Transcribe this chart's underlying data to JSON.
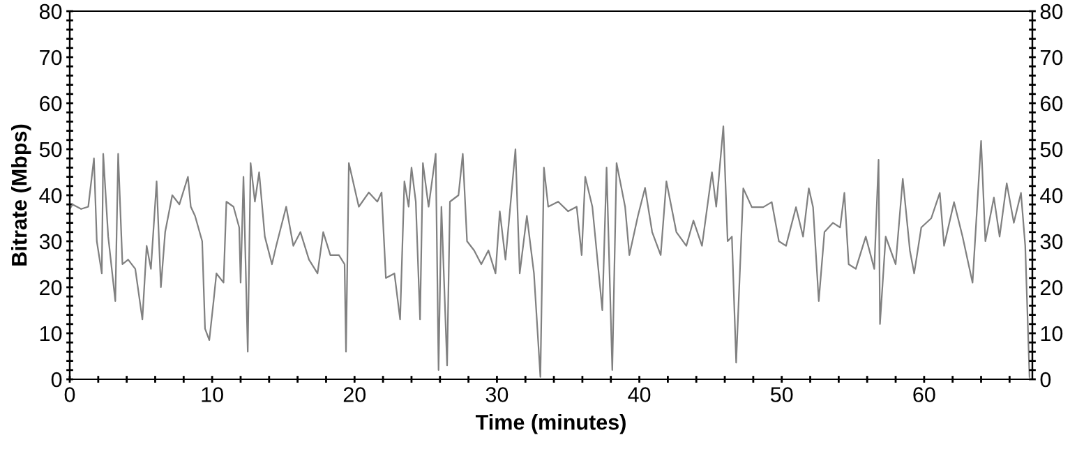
{
  "chart_data": {
    "type": "line",
    "xlabel": "Time (minutes)",
    "ylabel": "Bitrate (Mbps)",
    "xlim": [
      0,
      67.6
    ],
    "ylim": [
      0,
      80
    ],
    "xticks": [
      0,
      {
        "value": 2,
        "label": null
      },
      {
        "value": 4,
        "label": null
      },
      {
        "value": 6,
        "label": null
      },
      {
        "value": 8,
        "label": null
      },
      10,
      {
        "value": 12,
        "label": null
      },
      {
        "value": 14,
        "label": null
      },
      {
        "value": 16,
        "label": null
      },
      {
        "value": 18,
        "label": null
      },
      20,
      {
        "value": 22,
        "label": null
      },
      {
        "value": 24,
        "label": null
      },
      {
        "value": 26,
        "label": null
      },
      {
        "value": 28,
        "label": null
      },
      30,
      {
        "value": 32,
        "label": null
      },
      {
        "value": 34,
        "label": null
      },
      {
        "value": 36,
        "label": null
      },
      {
        "value": 38,
        "label": null
      },
      40,
      {
        "value": 42,
        "label": null
      },
      {
        "value": 44,
        "label": null
      },
      {
        "value": 46,
        "label": null
      },
      {
        "value": 48,
        "label": null
      },
      50,
      {
        "value": 52,
        "label": null
      },
      {
        "value": 54,
        "label": null
      },
      {
        "value": 56,
        "label": null
      },
      {
        "value": 58,
        "label": null
      },
      60,
      {
        "value": 62,
        "label": null
      },
      {
        "value": 64,
        "label": null
      },
      {
        "value": 66,
        "label": null
      }
    ],
    "yticks": [
      0,
      {
        "value": 2,
        "label": null
      },
      {
        "value": 4,
        "label": null
      },
      {
        "value": 6,
        "label": null
      },
      {
        "value": 8,
        "label": null
      },
      10,
      {
        "value": 12,
        "label": null
      },
      {
        "value": 14,
        "label": null
      },
      {
        "value": 16,
        "label": null
      },
      {
        "value": 18,
        "label": null
      },
      20,
      {
        "value": 22,
        "label": null
      },
      {
        "value": 24,
        "label": null
      },
      {
        "value": 26,
        "label": null
      },
      {
        "value": 28,
        "label": null
      },
      30,
      {
        "value": 32,
        "label": null
      },
      {
        "value": 34,
        "label": null
      },
      {
        "value": 36,
        "label": null
      },
      {
        "value": 38,
        "label": null
      },
      40,
      {
        "value": 42,
        "label": null
      },
      {
        "value": 44,
        "label": null
      },
      {
        "value": 46,
        "label": null
      },
      {
        "value": 48,
        "label": null
      },
      50,
      {
        "value": 52,
        "label": null
      },
      {
        "value": 54,
        "label": null
      },
      {
        "value": 56,
        "label": null
      },
      {
        "value": 58,
        "label": null
      },
      60,
      {
        "value": 62,
        "label": null
      },
      {
        "value": 64,
        "label": null
      },
      {
        "value": 66,
        "label": null
      },
      {
        "value": 68,
        "label": null
      },
      70,
      {
        "value": 72,
        "label": null
      },
      {
        "value": 74,
        "label": null
      },
      {
        "value": 76,
        "label": null
      },
      {
        "value": 78,
        "label": null
      },
      80
    ],
    "y2lim": [
      0,
      80
    ],
    "y2ticks": [
      0,
      {
        "value": 2,
        "label": null
      },
      {
        "value": 4,
        "label": null
      },
      {
        "value": 6,
        "label": null
      },
      {
        "value": 8,
        "label": null
      },
      10,
      {
        "value": 12,
        "label": null
      },
      {
        "value": 14,
        "label": null
      },
      {
        "value": 16,
        "label": null
      },
      {
        "value": 18,
        "label": null
      },
      20,
      {
        "value": 22,
        "label": null
      },
      {
        "value": 24,
        "label": null
      },
      {
        "value": 26,
        "label": null
      },
      {
        "value": 28,
        "label": null
      },
      30,
      {
        "value": 32,
        "label": null
      },
      {
        "value": 34,
        "label": null
      },
      {
        "value": 36,
        "label": null
      },
      {
        "value": 38,
        "label": null
      },
      40,
      {
        "value": 42,
        "label": null
      },
      {
        "value": 44,
        "label": null
      },
      {
        "value": 46,
        "label": null
      },
      {
        "value": 48,
        "label": null
      },
      50,
      {
        "value": 52,
        "label": null
      },
      {
        "value": 54,
        "label": null
      },
      {
        "value": 56,
        "label": null
      },
      {
        "value": 58,
        "label": null
      },
      60,
      {
        "value": 62,
        "label": null
      },
      {
        "value": 64,
        "label": null
      },
      {
        "value": 66,
        "label": null
      },
      {
        "value": 68,
        "label": null
      },
      70,
      {
        "value": 72,
        "label": null
      },
      {
        "value": 74,
        "label": null
      },
      {
        "value": 76,
        "label": null
      },
      {
        "value": 78,
        "label": null
      },
      80
    ],
    "grid": false,
    "marker": "none",
    "line_style": "solid",
    "series": [
      {
        "color": "#808080",
        "x": [
          0,
          0.2,
          0.8,
          1.3,
          1.7,
          1.9,
          2.25,
          2.35,
          2.7,
          3.2,
          3.4,
          3.7,
          4.1,
          4.6,
          5.1,
          5.4,
          5.7,
          6.1,
          6.4,
          6.7,
          7.2,
          7.7,
          8.3,
          8.5,
          8.8,
          9.3,
          9.5,
          9.8,
          10.1,
          10.3,
          10.8,
          11,
          11.5,
          11.9,
          12.0,
          12.2,
          12.5,
          12.7,
          13,
          13.3,
          13.7,
          14.2,
          14.5,
          15.2,
          15.7,
          16.2,
          16.8,
          17.4,
          17.8,
          18.3,
          18.9,
          19.3,
          19.4,
          19.6,
          20.3,
          21,
          21.6,
          21.9,
          22.2,
          22.8,
          23.2,
          23.5,
          23.8,
          24,
          24.3,
          24.6,
          24.8,
          25.2,
          25.7,
          25.9,
          26.1,
          26.5,
          26.7,
          27.3,
          27.6,
          27.9,
          28.4,
          28.9,
          29.4,
          29.9,
          30.2,
          30.6,
          31.3,
          31.6,
          32.1,
          32.6,
          33.05,
          33.3,
          33.6,
          34.3,
          35,
          35.6,
          35.95,
          36.2,
          36.7,
          37.4,
          37.7,
          38.1,
          38.4,
          39,
          39.3,
          39.9,
          40.4,
          40.9,
          41.5,
          41.9,
          42.6,
          43.3,
          43.8,
          44.4,
          45.1,
          45.4,
          45.9,
          46.2,
          46.5,
          46.8,
          47.3,
          47.9,
          48.7,
          49.3,
          49.8,
          50.3,
          51,
          51.5,
          51.9,
          52.2,
          52.6,
          53,
          53.6,
          54.1,
          54.4,
          54.7,
          55.2,
          55.9,
          56.5,
          56.8,
          56.9,
          57.3,
          58,
          58.5,
          59,
          59.3,
          59.8,
          60.5,
          61.1,
          61.4,
          62.1,
          62.7,
          63.4,
          64,
          64.3,
          64.9,
          65.3,
          65.8,
          66.3,
          66.8,
          67.1,
          67.4
        ],
        "values": [
          37,
          38,
          37,
          37.5,
          48,
          30,
          23,
          49,
          31,
          17,
          49,
          25,
          26,
          24,
          13,
          29,
          24,
          43,
          20,
          32,
          40,
          38,
          44,
          37.5,
          35.5,
          30,
          11,
          8.5,
          17,
          23,
          21,
          38.6,
          37.5,
          33,
          21,
          44,
          6,
          47,
          38.6,
          45,
          31,
          25,
          29,
          37.5,
          29,
          32,
          26,
          23,
          32,
          27,
          27,
          25,
          6,
          47,
          37.5,
          40.6,
          38.6,
          40.6,
          22,
          23,
          13,
          43,
          37.5,
          46,
          38.6,
          13,
          47,
          37.5,
          49,
          2,
          37.5,
          3,
          38.6,
          40,
          49,
          30,
          28,
          25,
          28,
          23,
          36.5,
          26,
          50,
          23,
          35.5,
          23,
          0.5,
          46,
          37.5,
          38.6,
          36.5,
          37.5,
          27,
          44,
          37.5,
          15,
          46,
          2,
          47,
          37.5,
          27,
          35.5,
          41.6,
          32,
          27,
          43,
          32,
          29,
          34.5,
          29,
          45,
          37.5,
          55,
          30,
          31,
          3.6,
          41.5,
          37.4,
          37.4,
          38.5,
          30,
          29,
          37.4,
          31,
          41.5,
          37.4,
          17,
          32,
          34,
          33,
          40.5,
          25,
          24,
          31,
          24,
          47.7,
          12,
          31,
          25,
          43.6,
          28,
          23,
          33,
          35,
          40.5,
          29,
          38.5,
          31,
          21,
          51.8,
          30,
          39.5,
          31,
          42.6,
          34,
          40.5,
          29,
          0.5
        ]
      }
    ]
  }
}
